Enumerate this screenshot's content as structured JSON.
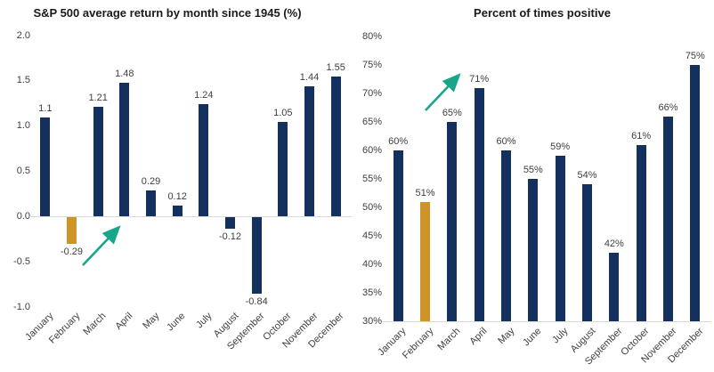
{
  "colors": {
    "bar_navy": "#13305e",
    "highlight_gold": "#cf9428",
    "arrow_teal": "#17a689",
    "axis_line_gray": "#d9d9d9",
    "label_gray": "#404040",
    "title_black": "#1a1a1a",
    "background": "#ffffff"
  },
  "chart_data": [
    {
      "type": "bar",
      "title": "S&P 500 average return by month since 1945 (%)",
      "categories": [
        "January",
        "February",
        "March",
        "April",
        "May",
        "June",
        "July",
        "August",
        "September",
        "October",
        "November",
        "December"
      ],
      "values": [
        1.1,
        -0.29,
        1.21,
        1.48,
        0.29,
        0.12,
        1.24,
        -0.12,
        -0.84,
        1.05,
        1.44,
        1.55
      ],
      "bar_labels": [
        "1.1",
        "-0.29",
        "1.21",
        "1.48",
        "0.29",
        "0.12",
        "1.24",
        "-0.12",
        "-0.84",
        "1.05",
        "1.44",
        "1.55"
      ],
      "ylim": [
        -1.0,
        2.0
      ],
      "yticks": [
        2.0,
        1.5,
        1.0,
        0.5,
        0.0,
        -0.5,
        -1.0
      ],
      "ytick_labels": [
        "2.0",
        "1.5",
        "1.0",
        "0.5",
        "0.0",
        "-0.5",
        "-1.0"
      ],
      "baseline": 0,
      "grid": false,
      "legend": "none",
      "highlight_index": 1,
      "highlight_category": "February",
      "annotation": "teal arrow pointing up-right from below February toward April"
    },
    {
      "type": "bar",
      "title": "Percent of times positive",
      "categories": [
        "January",
        "February",
        "March",
        "April",
        "May",
        "June",
        "July",
        "August",
        "September",
        "October",
        "November",
        "December"
      ],
      "values": [
        60,
        51,
        65,
        71,
        60,
        55,
        59,
        54,
        42,
        61,
        66,
        75
      ],
      "bar_labels": [
        "60%",
        "51%",
        "65%",
        "71%",
        "60%",
        "55%",
        "59%",
        "54%",
        "42%",
        "61%",
        "66%",
        "75%"
      ],
      "ylim": [
        30,
        80
      ],
      "yticks": [
        80,
        75,
        70,
        65,
        60,
        55,
        50,
        45,
        40,
        35,
        30
      ],
      "ytick_labels": [
        "80%",
        "75%",
        "70%",
        "65%",
        "60%",
        "55%",
        "50%",
        "45%",
        "40%",
        "35%",
        "30%"
      ],
      "baseline": 30,
      "grid": false,
      "legend": "none",
      "highlight_index": 1,
      "highlight_category": "February",
      "annotation": "teal arrow pointing up-right between February and April"
    }
  ]
}
